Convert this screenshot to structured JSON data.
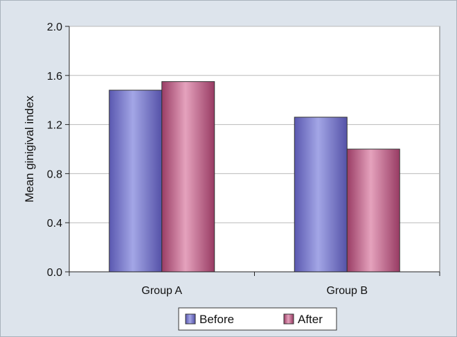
{
  "chart_data": {
    "type": "bar",
    "title": "",
    "xlabel": "",
    "ylabel": "Mean ginigival index",
    "categories": [
      "Group A",
      "Group B"
    ],
    "series": [
      {
        "name": "Before",
        "values": [
          1.48,
          1.26
        ]
      },
      {
        "name": "After",
        "values": [
          1.55,
          1.0
        ]
      }
    ],
    "ylim": [
      0,
      2.0
    ],
    "yticks": [
      "0.0",
      "0.4",
      "0.8",
      "1.2",
      "1.6",
      "2.0"
    ],
    "grid": true,
    "legend_position": "bottom",
    "colors": {
      "Before": "#7f7fd0",
      "After": "#c0698e",
      "background": "#dde4ec",
      "plot_area": "#ffffff"
    }
  }
}
